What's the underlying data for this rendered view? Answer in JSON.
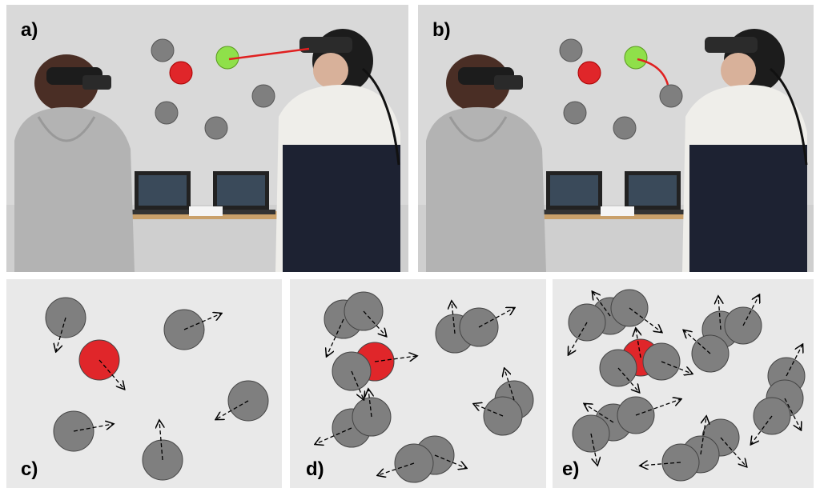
{
  "panels": {
    "a": {
      "label": "a)"
    },
    "b": {
      "label": "b)"
    },
    "c": {
      "label": "c)"
    },
    "d": {
      "label": "d)"
    },
    "e": {
      "label": "e)"
    }
  },
  "colors": {
    "wall": "#dcdcdc",
    "target_red": "#e0262a",
    "selected_green": "#8fe04a",
    "distractor_grey": "#7f7f7f",
    "ray_red": "#e02020",
    "diagram_bg": "#e9e9e9"
  }
}
